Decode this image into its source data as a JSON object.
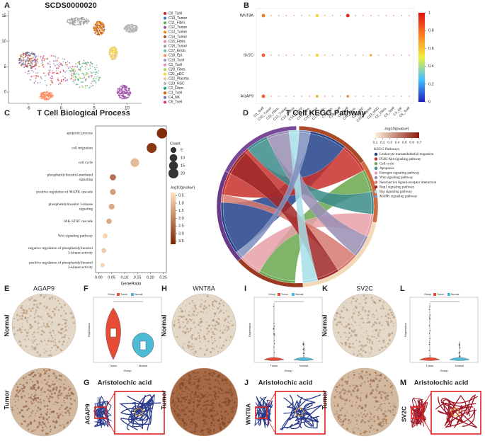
{
  "panels": {
    "A": {
      "letter": "A",
      "title": "SCDS0000020",
      "xlim": [
        -8,
        12.2
      ],
      "ylim": [
        -2.2,
        16
      ],
      "xticks": [
        -5,
        0,
        5,
        10
      ],
      "yticks": [
        0,
        5,
        10,
        15
      ],
      "clusters": [
        "C0_Tcell",
        "C10_Tumor",
        "C11_Fibro.",
        "C12_Tumor",
        "C13_Tumor",
        "C14_Tumor",
        "C15_Fibro.",
        "C16_Tumor",
        "C17_Endo.",
        "C18_Epi.",
        "C19_Tcell",
        "C1_Tcell",
        "C20_Fibro.",
        "C21_pDC",
        "C22_Plasma",
        "C23_HSC",
        "C2_Fibro.",
        "C3_Tcell",
        "C4_NK",
        "C5_Tcell"
      ],
      "colors": [
        "#e41a1c",
        "#377eb8",
        "#4daf4a",
        "#984ea3",
        "#ff7f00",
        "#a65628",
        "#f781bf",
        "#999999",
        "#66c2a5",
        "#fc8d62",
        "#8da0cb",
        "#e78ac3",
        "#a6d854",
        "#ffd92f",
        "#e5c494",
        "#b3b3b3",
        "#1b9e77",
        "#d95f02",
        "#7570b3",
        "#e7298a"
      ]
    },
    "B": {
      "letter": "B",
      "genes": [
        "WNT8A",
        "SV2C",
        "AGAP9"
      ],
      "colorbar_ticks": [
        0,
        0.2,
        0.4,
        0.6,
        0.8,
        1
      ]
    },
    "C": {
      "letter": "C",
      "title": "T Cell Biological Process",
      "xlabel": "GeneRatio",
      "terms": [
        [
          "apoptotic process"
        ],
        [
          "cell migration"
        ],
        [
          "cell cycle"
        ],
        [
          "phosphatidylinositol-mediated",
          "signaling"
        ],
        [
          "positive regulation of MAPK cascade"
        ],
        [
          "phosphatidylinositol 3-kinase",
          "signaling"
        ],
        [
          "JAK-STAT cascade"
        ],
        [
          "Wnt signaling pathway"
        ],
        [
          "negative regulation of phosphatidylinositol",
          "3-kinase activity"
        ],
        [
          "positive regulation of phosphatidylinositol",
          "3-kinase activity"
        ]
      ],
      "gene_ratio": [
        0.245,
        0.205,
        0.14,
        0.055,
        0.055,
        0.05,
        0.04,
        0.025,
        0.02,
        0.015
      ],
      "count": [
        22,
        20,
        14,
        6,
        5,
        5,
        4,
        3,
        3,
        2
      ],
      "log_p": [
        3.6,
        3.4,
        1.0,
        2.3,
        1.5,
        1.3,
        1.3,
        0.5,
        0.7,
        0.5
      ],
      "xlim": [
        -0.012,
        0.262
      ],
      "xticks": [
        {
          "value": 0,
          "label": "0.00"
        },
        {
          "value": 0.05,
          "label": "0.05"
        },
        {
          "value": 0.1,
          "label": "0.10"
        },
        {
          "value": 0.15,
          "label": "0.15"
        },
        {
          "value": 0.2,
          "label": "0.20"
        },
        {
          "value": 0.25,
          "label": "0.25"
        }
      ],
      "count_title": "Count",
      "count_ticks": [
        5,
        10,
        15,
        20
      ],
      "color_title": "-log10(pvalue)",
      "color_range": [
        0.3,
        3.7
      ],
      "color_ticks": [
        {
          "value": 0.5,
          "label": "0.5"
        },
        {
          "value": 1,
          "label": "1.0"
        },
        {
          "value": 1.5,
          "label": "1.5"
        },
        {
          "value": 2,
          "label": "2.0"
        },
        {
          "value": 2.5,
          "label": "2.5"
        },
        {
          "value": 3,
          "label": "3.0"
        },
        {
          "value": 3.5,
          "label": "3.5"
        }
      ]
    },
    "D": {
      "letter": "D",
      "title": "T Cell KEGG Pathway",
      "color_title": "-log10(pvalue)",
      "color_ticks": [
        0.1,
        0.2,
        0.3,
        0.4,
        0.5,
        0.6,
        0.7
      ],
      "legend_title": "KEGG Pathways",
      "pathways": [
        "Leukocyte transendothelial migration",
        "PI3K-Akt signaling pathway",
        "Cell cycle",
        "Apoptosis",
        "Estrogen signaling pathway",
        "Wnt signaling pathway",
        "Neuroactive ligand-receptor interaction",
        "Rap1 signaling pathway",
        "Ras signaling pathway",
        "MAPK signaling pathway"
      ],
      "colors": [
        "#24418a",
        "#c8312b",
        "#6aa84f",
        "#3d8b8b",
        "#e8a0a8",
        "#9a8fb5",
        "#d77a6e",
        "#a02828",
        "#a8e0e8",
        "#8090c0"
      ]
    },
    "E": {
      "letter": "E",
      "gene": "AGAP9",
      "rows": [
        "Normal",
        "Tumor"
      ]
    },
    "F": {
      "letter": "F",
      "ylabel": "Expression",
      "xlabel": "Group",
      "legend_title": "Group",
      "groups": [
        "Tumor",
        "Normal"
      ]
    },
    "G": {
      "letter": "G",
      "title": "Aristolochic acid",
      "gene": "AGAP9"
    },
    "H": {
      "letter": "H",
      "gene": "WNT8A",
      "rows": [
        "Normal",
        "Tumor"
      ]
    },
    "I": {
      "letter": "I",
      "ylabel": "Expression",
      "xlabel": "Group",
      "legend_title": "Group",
      "groups": [
        "Tumor",
        "Normal"
      ]
    },
    "J": {
      "letter": "J",
      "title": "Aristolochic acid",
      "gene": "WNT8A"
    },
    "K": {
      "letter": "K",
      "gene": "SV2C",
      "rows": [
        "Normal",
        "Tumor"
      ]
    },
    "L": {
      "letter": "L",
      "ylabel": "Expression",
      "xlabel": "Group",
      "legend_title": "Group",
      "groups": [
        "Tumor",
        "Normal"
      ]
    },
    "M": {
      "letter": "M",
      "title": "Aristolochic acid",
      "gene": "SV2C"
    }
  }
}
